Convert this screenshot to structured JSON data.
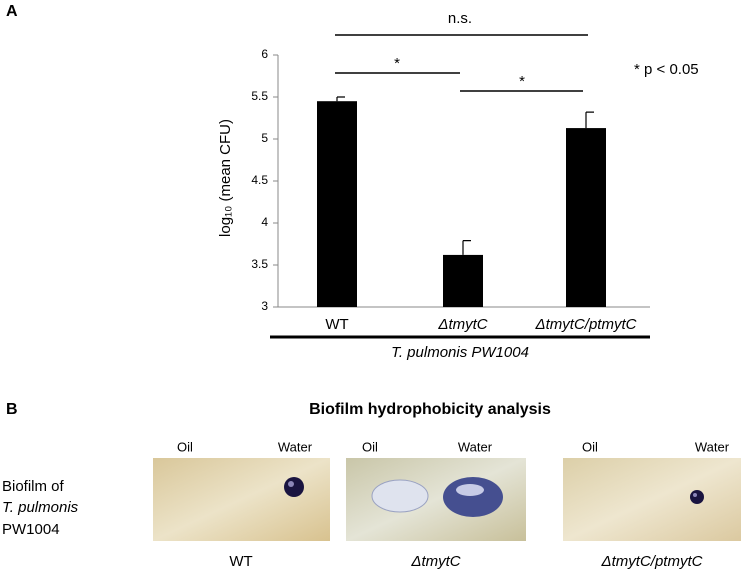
{
  "chart_data": {
    "type": "bar",
    "ylabel": "log₁₀ (mean CFU)",
    "categories": [
      "WT",
      "ΔtmytC",
      "ΔtmytC/ptmytC"
    ],
    "values": [
      5.45,
      3.62,
      5.13
    ],
    "errors": [
      0.05,
      0.17,
      0.19
    ],
    "color": "#000000",
    "ylim": [
      3,
      6
    ],
    "yticks": [
      3,
      3.5,
      4,
      4.5,
      5,
      5.5,
      6
    ],
    "group_label": "T. pulmonis PW1004",
    "annotations": [
      "n.s.",
      "*",
      "*",
      "* p < 0.05"
    ]
  },
  "panel_labels": [
    "A",
    "B"
  ],
  "panel_b": {
    "title": "Biofilm hydrophobicity analysis",
    "row_label": [
      "Biofilm of",
      "T. pulmonis",
      "PW1004"
    ],
    "photos": [
      {
        "oil": "Oil",
        "water": "Water",
        "caption": "WT"
      },
      {
        "oil": "Oil",
        "water": "Water",
        "caption": "ΔtmytC"
      },
      {
        "oil": "Oil",
        "water": "Water",
        "caption": "ΔtmytC/ptmytC"
      }
    ]
  }
}
